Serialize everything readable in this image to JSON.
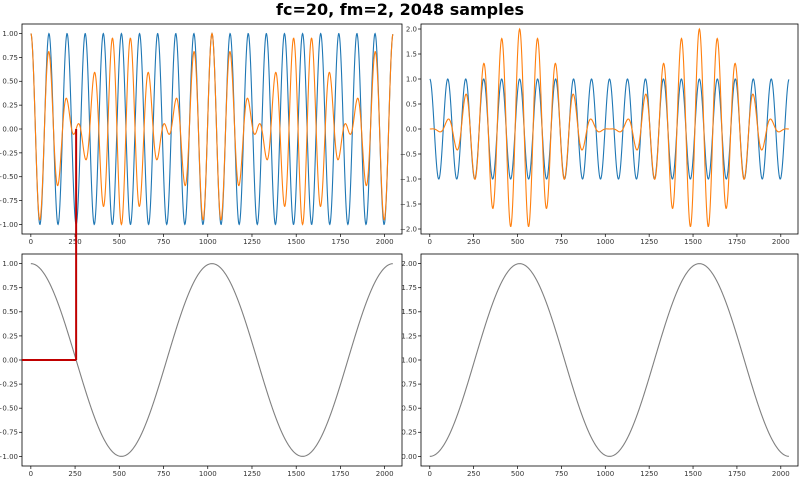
{
  "figure": {
    "title": "fc=20, fm=2, 2048 samples"
  },
  "colors": {
    "carrier": "#1f77b4",
    "product": "#ff7f0e",
    "message": "#808080",
    "annotation": "#c00000",
    "axes": "#000000"
  },
  "chart_data": [
    {
      "type": "line",
      "subplot": "top-left",
      "xlim": [
        -50,
        2098
      ],
      "ylim": [
        -1.1,
        1.1
      ],
      "xticks": [
        0,
        250,
        500,
        750,
        1000,
        1250,
        1500,
        1750,
        2000
      ],
      "yticks": [
        -1.0,
        -0.75,
        -0.5,
        -0.25,
        0.0,
        0.25,
        0.5,
        0.75,
        1.0
      ],
      "ytick_labels": [
        "−1.00",
        "−0.75",
        "−0.50",
        "−0.25",
        "0.00",
        "0.25",
        "0.50",
        "0.75",
        "1.00"
      ],
      "series": [
        {
          "key": "carrier",
          "function": "cos(2*pi*20*n/2048)",
          "color": "#1f77b4"
        },
        {
          "key": "product",
          "function": "cos(2*pi*20*n/2048) * cos(2*pi*2*n/2048)",
          "color": "#ff7f0e"
        }
      ]
    },
    {
      "type": "line",
      "subplot": "top-right",
      "xlim": [
        -50,
        2098
      ],
      "ylim": [
        -2.1,
        2.1
      ],
      "xticks": [
        0,
        250,
        500,
        750,
        1000,
        1250,
        1500,
        1750,
        2000
      ],
      "yticks": [
        -2.0,
        -1.5,
        -1.0,
        -0.5,
        0.0,
        0.5,
        1.0,
        1.5,
        2.0
      ],
      "ytick_labels": [
        "−2.0",
        "−1.5",
        "−1.0",
        "−0.5",
        "0.0",
        "0.5",
        "1.0",
        "1.5",
        "2.0"
      ],
      "series": [
        {
          "key": "carrier",
          "function": "cos(2*pi*20*n/2048)",
          "color": "#1f77b4"
        },
        {
          "key": "product",
          "function": "cos(2*pi*20*n/2048) * (1 - cos(2*pi*2*n/2048))",
          "color": "#ff7f0e"
        }
      ]
    },
    {
      "type": "line",
      "subplot": "bottom-left",
      "xlim": [
        -50,
        2098
      ],
      "ylim": [
        -1.1,
        1.1
      ],
      "xticks": [
        0,
        250,
        500,
        750,
        1000,
        1250,
        1500,
        1750,
        2000
      ],
      "yticks": [
        -1.0,
        -0.75,
        -0.5,
        -0.25,
        0.0,
        0.25,
        0.5,
        0.75,
        1.0
      ],
      "ytick_labels": [
        "−1.00",
        "−0.75",
        "−0.50",
        "−0.25",
        "0.00",
        "0.25",
        "0.50",
        "0.75",
        "1.00"
      ],
      "series": [
        {
          "key": "message",
          "function": "cos(2*pi*2*n/2048)",
          "color": "#808080"
        }
      ]
    },
    {
      "type": "line",
      "subplot": "bottom-right",
      "xlim": [
        -50,
        2098
      ],
      "ylim": [
        -0.1,
        2.1
      ],
      "xticks": [
        0,
        250,
        500,
        750,
        1000,
        1250,
        1500,
        1750,
        2000
      ],
      "yticks": [
        0.0,
        0.25,
        0.5,
        0.75,
        1.0,
        1.25,
        1.5,
        1.75,
        2.0
      ],
      "ytick_labels": [
        "0.00",
        "0.25",
        "0.50",
        "0.75",
        "1.00",
        "1.25",
        "1.50",
        "1.75",
        "2.00"
      ],
      "series": [
        {
          "key": "message",
          "function": "1 - cos(2*pi*2*n/2048)",
          "color": "#808080"
        }
      ]
    }
  ],
  "annotation": {
    "description_points_data_units": [
      [
        256,
        0.0
      ],
      [
        256,
        1.0
      ]
    ],
    "horizontal_to_x": 256,
    "vertical_from_y_top_plot": 0.0,
    "vertical_to_y_top_plot": -1.0
  }
}
